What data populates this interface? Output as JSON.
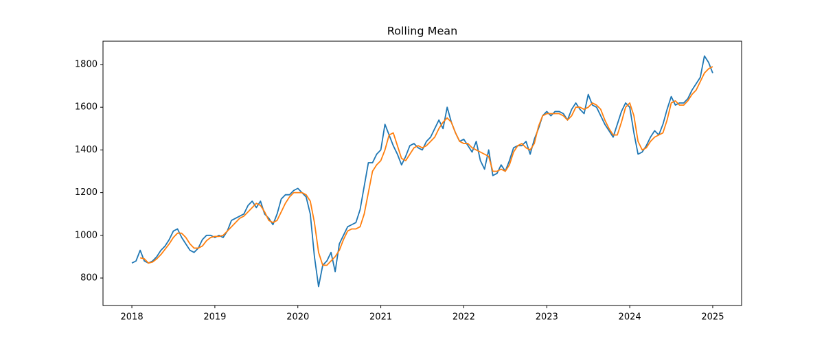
{
  "chart_data": {
    "type": "line",
    "title": "Rolling Mean",
    "x": [
      2018.0,
      2018.05,
      2018.1,
      2018.15,
      2018.2,
      2018.25,
      2018.3,
      2018.35,
      2018.4,
      2018.45,
      2018.5,
      2018.55,
      2018.6,
      2018.65,
      2018.7,
      2018.75,
      2018.8,
      2018.85,
      2018.9,
      2018.95,
      2019.0,
      2019.05,
      2019.1,
      2019.15,
      2019.2,
      2019.25,
      2019.3,
      2019.35,
      2019.4,
      2019.45,
      2019.5,
      2019.55,
      2019.6,
      2019.65,
      2019.7,
      2019.75,
      2019.8,
      2019.85,
      2019.9,
      2019.95,
      2020.0,
      2020.05,
      2020.1,
      2020.15,
      2020.2,
      2020.25,
      2020.3,
      2020.35,
      2020.4,
      2020.45,
      2020.5,
      2020.55,
      2020.6,
      2020.65,
      2020.7,
      2020.75,
      2020.8,
      2020.85,
      2020.9,
      2020.95,
      2021.0,
      2021.05,
      2021.1,
      2021.15,
      2021.2,
      2021.25,
      2021.3,
      2021.35,
      2021.4,
      2021.45,
      2021.5,
      2021.55,
      2021.6,
      2021.65,
      2021.7,
      2021.75,
      2021.8,
      2021.85,
      2021.9,
      2021.95,
      2022.0,
      2022.05,
      2022.1,
      2022.15,
      2022.2,
      2022.25,
      2022.3,
      2022.35,
      2022.4,
      2022.45,
      2022.5,
      2022.55,
      2022.6,
      2022.65,
      2022.7,
      2022.75,
      2022.8,
      2022.85,
      2022.9,
      2022.95,
      2023.0,
      2023.05,
      2023.1,
      2023.15,
      2023.2,
      2023.25,
      2023.3,
      2023.35,
      2023.4,
      2023.45,
      2023.5,
      2023.55,
      2023.6,
      2023.65,
      2023.7,
      2023.75,
      2023.8,
      2023.85,
      2023.9,
      2023.95,
      2024.0,
      2024.05,
      2024.1,
      2024.15,
      2024.2,
      2024.25,
      2024.3,
      2024.35,
      2024.4,
      2024.45,
      2024.5,
      2024.55,
      2024.6,
      2024.65,
      2024.7,
      2024.75,
      2024.8,
      2024.85,
      2024.9,
      2024.95,
      2025.0
    ],
    "series": [
      {
        "color": "#1f77b4",
        "values": [
          870,
          880,
          930,
          880,
          870,
          880,
          900,
          930,
          950,
          980,
          1020,
          1030,
          990,
          960,
          930,
          920,
          940,
          980,
          1000,
          1000,
          990,
          1000,
          990,
          1020,
          1070,
          1080,
          1090,
          1100,
          1140,
          1160,
          1130,
          1160,
          1100,
          1080,
          1050,
          1100,
          1170,
          1190,
          1190,
          1210,
          1220,
          1200,
          1180,
          1100,
          900,
          760,
          860,
          880,
          920,
          830,
          960,
          1000,
          1040,
          1050,
          1060,
          1120,
          1230,
          1340,
          1340,
          1380,
          1400,
          1520,
          1470,
          1420,
          1380,
          1330,
          1370,
          1420,
          1430,
          1410,
          1400,
          1440,
          1460,
          1500,
          1540,
          1500,
          1600,
          1530,
          1480,
          1440,
          1450,
          1420,
          1390,
          1440,
          1350,
          1310,
          1400,
          1280,
          1290,
          1330,
          1300,
          1350,
          1410,
          1420,
          1420,
          1440,
          1380,
          1450,
          1500,
          1560,
          1580,
          1560,
          1580,
          1580,
          1570,
          1540,
          1590,
          1620,
          1590,
          1570,
          1660,
          1610,
          1600,
          1560,
          1520,
          1490,
          1460,
          1520,
          1580,
          1620,
          1600,
          1480,
          1380,
          1390,
          1420,
          1460,
          1490,
          1470,
          1520,
          1590,
          1650,
          1610,
          1620,
          1620,
          1640,
          1680,
          1710,
          1740,
          1840,
          1810,
          1760
        ]
      },
      {
        "color": "#ff7f0e",
        "values": [
          null,
          null,
          895,
          890,
          870,
          875,
          890,
          910,
          935,
          960,
          990,
          1010,
          1010,
          990,
          960,
          940,
          940,
          950,
          975,
          990,
          995,
          995,
          1000,
          1020,
          1040,
          1060,
          1080,
          1090,
          1110,
          1130,
          1150,
          1140,
          1110,
          1070,
          1060,
          1070,
          1110,
          1150,
          1180,
          1200,
          1200,
          1200,
          1190,
          1160,
          1060,
          920,
          860,
          860,
          880,
          900,
          930,
          980,
          1020,
          1030,
          1030,
          1040,
          1100,
          1200,
          1300,
          1330,
          1350,
          1400,
          1470,
          1480,
          1420,
          1360,
          1350,
          1380,
          1410,
          1420,
          1410,
          1420,
          1440,
          1460,
          1500,
          1530,
          1550,
          1530,
          1480,
          1440,
          1430,
          1430,
          1410,
          1400,
          1390,
          1380,
          1370,
          1300,
          1300,
          1310,
          1300,
          1330,
          1390,
          1420,
          1430,
          1410,
          1400,
          1430,
          1510,
          1560,
          1570,
          1570,
          1570,
          1570,
          1560,
          1540,
          1560,
          1600,
          1600,
          1590,
          1600,
          1620,
          1610,
          1590,
          1540,
          1500,
          1470,
          1470,
          1530,
          1600,
          1620,
          1560,
          1440,
          1400,
          1410,
          1440,
          1460,
          1470,
          1480,
          1540,
          1620,
          1630,
          1610,
          1610,
          1630,
          1660,
          1680,
          1720,
          1760,
          1780,
          1790
        ]
      }
    ],
    "xlim": [
      2017.652,
      2025.348
    ],
    "xticks": [
      2018,
      2019,
      2020,
      2021,
      2022,
      2023,
      2024,
      2025
    ],
    "ylim": [
      671.4,
      1909.3
    ],
    "yticks": [
      800,
      1000,
      1200,
      1400,
      1600,
      1800
    ]
  }
}
